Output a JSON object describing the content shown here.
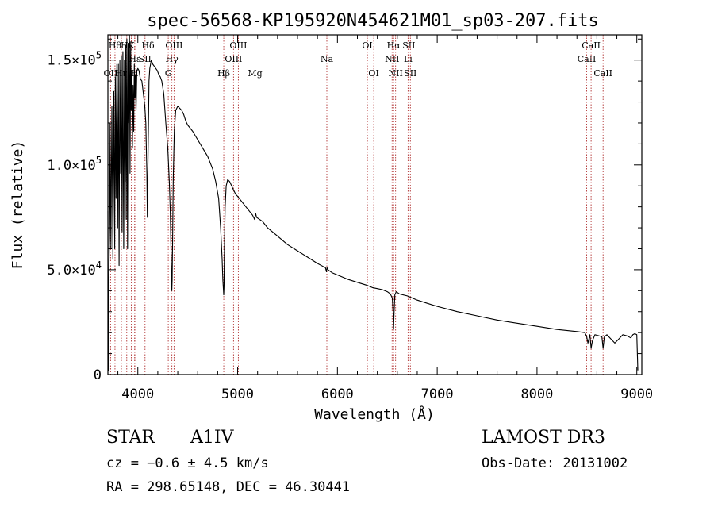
{
  "chart_data": {
    "type": "line",
    "title": "spec-56568-KP195920N454621M01_sp03-207.fits",
    "xlabel": "Wavelength (Å)",
    "ylabel": "Flux (relative)",
    "xlim": [
      3700,
      9050
    ],
    "ylim": [
      0,
      162000
    ],
    "x_ticks": [
      4000,
      5000,
      6000,
      7000,
      8000,
      9000
    ],
    "x_tick_labels": [
      "4000",
      "5000",
      "6000",
      "7000",
      "8000",
      "9000"
    ],
    "y_ticks": [
      0,
      50000,
      100000,
      150000
    ],
    "y_tick_labels": [
      {
        "mant": "0",
        "exp": ""
      },
      {
        "mant": "5.0×10",
        "exp": "4"
      },
      {
        "mant": "1.0×10",
        "exp": "5"
      },
      {
        "mant": "1.5×10",
        "exp": "5"
      }
    ],
    "series": [
      {
        "name": "flux",
        "x": [
          3700,
          3705,
          3712,
          3718,
          3722,
          3730,
          3740,
          3750,
          3760,
          3768,
          3775,
          3782,
          3790,
          3798,
          3805,
          3812,
          3820,
          3828,
          3835,
          3842,
          3850,
          3858,
          3866,
          3872,
          3878,
          3884,
          3890,
          3897,
          3903,
          3910,
          3916,
          3922,
          3928,
          3934,
          3940,
          3946,
          3952,
          3958,
          3965,
          3970,
          3975,
          3982,
          3990,
          4000,
          4012,
          4025,
          4040,
          4055,
          4070,
          4080,
          4090,
          4095,
          4101,
          4106,
          4112,
          4120,
          4135,
          4150,
          4165,
          4180,
          4195,
          4210,
          4225,
          4240,
          4260,
          4280,
          4300,
          4315,
          4325,
          4333,
          4338,
          4341,
          4344,
          4348,
          4355,
          4365,
          4380,
          4400,
          4420,
          4440,
          4460,
          4480,
          4500,
          4550,
          4600,
          4650,
          4700,
          4750,
          4780,
          4810,
          4830,
          4845,
          4852,
          4858,
          4861,
          4864,
          4868,
          4875,
          4885,
          4900,
          4920,
          4950,
          4980,
          5000,
          5050,
          5100,
          5150,
          5170,
          5180,
          5190,
          5250,
          5300,
          5400,
          5500,
          5600,
          5700,
          5800,
          5880,
          5890,
          5896,
          5905,
          5950,
          6000,
          6100,
          6200,
          6300,
          6350,
          6400,
          6450,
          6500,
          6530,
          6550,
          6558,
          6563,
          6568,
          6575,
          6590,
          6620,
          6700,
          6800,
          6900,
          7000,
          7200,
          7400,
          7600,
          7800,
          8000,
          8200,
          8400,
          8480,
          8498,
          8510,
          8530,
          8542,
          8555,
          8580,
          8620,
          8650,
          8662,
          8675,
          8700,
          8740,
          8760,
          8780,
          8820,
          8860,
          8900,
          8940,
          8960,
          8980,
          9000,
          9010
        ],
        "y": [
          78000,
          2000,
          55000,
          72000,
          120000,
          60000,
          128000,
          55000,
          135000,
          60000,
          142000,
          84000,
          148000,
          70000,
          148000,
          52000,
          150000,
          96000,
          152000,
          68000,
          154000,
          60000,
          150000,
          92000,
          157000,
          74000,
          160000,
          60000,
          158000,
          120000,
          162000,
          96000,
          157000,
          126000,
          145000,
          108000,
          138000,
          116000,
          148000,
          132000,
          143000,
          126000,
          145000,
          146000,
          145000,
          141000,
          140000,
          134000,
          128000,
          120000,
          96000,
          75000,
          98000,
          118000,
          140000,
          146000,
          150000,
          148000,
          147000,
          146000,
          145000,
          143000,
          142000,
          140000,
          134000,
          120000,
          108000,
          92000,
          78000,
          58000,
          45000,
          40000,
          45000,
          62000,
          94000,
          116000,
          126000,
          128000,
          127000,
          126000,
          124000,
          121000,
          119000,
          116000,
          112000,
          108000,
          104000,
          98000,
          92000,
          84000,
          70000,
          55000,
          45000,
          40000,
          38000,
          42000,
          60000,
          80000,
          90000,
          93000,
          92000,
          89000,
          86000,
          85000,
          82000,
          79000,
          76000,
          74000,
          77000,
          75000,
          73000,
          70000,
          66000,
          62000,
          59000,
          56000,
          53000,
          51000,
          49000,
          51000,
          50000,
          48500,
          47500,
          45500,
          44000,
          42500,
          41500,
          41000,
          40500,
          39500,
          38500,
          36500,
          30000,
          22000,
          30000,
          38000,
          39500,
          38500,
          37500,
          35500,
          34000,
          32500,
          30000,
          28000,
          26000,
          24500,
          23000,
          21500,
          20500,
          20000,
          18000,
          15000,
          19000,
          12500,
          16000,
          19000,
          18500,
          18000,
          12500,
          18000,
          19000,
          17000,
          16000,
          15000,
          17000,
          19000,
          18500,
          17500,
          19000,
          19500,
          19000,
          2000
        ]
      }
    ],
    "line_markers": [
      {
        "label": "OII",
        "x": 3727,
        "row": 3
      },
      {
        "label": "Hθ",
        "x": 3771,
        "row": 1
      },
      {
        "label": "Hη",
        "x": 3835,
        "row": 3
      },
      {
        "label": "Hζ",
        "x": 3889,
        "row": 1
      },
      {
        "label": "K",
        "x": 3934,
        "row": 1
      },
      {
        "label": "H",
        "x": 3968,
        "row": 3
      },
      {
        "label": "Hε",
        "x": 3970,
        "row": 2
      },
      {
        "label": "SII",
        "x": 4072,
        "row": 2
      },
      {
        "label": "Hδ",
        "x": 4102,
        "row": 1
      },
      {
        "label": "Hγ",
        "x": 4341,
        "row": 2
      },
      {
        "label": "G",
        "x": 4305,
        "row": 3
      },
      {
        "label": "OIII",
        "x": 4363,
        "row": 1
      },
      {
        "label": "Hβ",
        "x": 4861,
        "row": 3
      },
      {
        "label": "OIII",
        "x": 4959,
        "row": 2
      },
      {
        "label": "OIII",
        "x": 5007,
        "row": 1
      },
      {
        "label": "Mg",
        "x": 5175,
        "row": 3
      },
      {
        "label": "Na",
        "x": 5894,
        "row": 2
      },
      {
        "label": "OI",
        "x": 6300,
        "row": 1
      },
      {
        "label": "OI",
        "x": 6364,
        "row": 3
      },
      {
        "label": "NII",
        "x": 6548,
        "row": 2
      },
      {
        "label": "Hα",
        "x": 6563,
        "row": 1
      },
      {
        "label": "NII",
        "x": 6583,
        "row": 3
      },
      {
        "label": "Li",
        "x": 6708,
        "row": 2
      },
      {
        "label": "SII",
        "x": 6716,
        "row": 1
      },
      {
        "label": "SII",
        "x": 6731,
        "row": 3
      },
      {
        "label": "CaII",
        "x": 8498,
        "row": 2
      },
      {
        "label": "CaII",
        "x": 8542,
        "row": 1
      },
      {
        "label": "CaII",
        "x": 8662,
        "row": 3
      }
    ],
    "colors": {
      "line": "#000000",
      "marker": "#b03030",
      "axis": "#000000"
    }
  },
  "info": {
    "class": "STAR",
    "subclass": "A1IV",
    "survey": "LAMOST DR3",
    "redshift": "cz = −0.6 ± 4.5 km/s",
    "obs_date": "Obs-Date: 20131002",
    "coords": "RA = 298.65148, DEC =  46.30441"
  }
}
